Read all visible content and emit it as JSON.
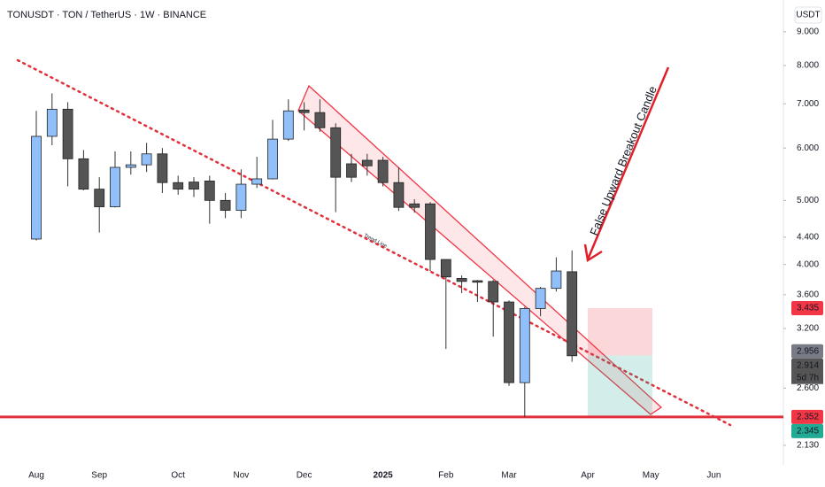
{
  "chart_data": {
    "type": "candlestick",
    "title": "TONUSDT · TON / TetherUS · 1W · BINANCE",
    "currency": "USDT",
    "log_scale": true,
    "up_color": "#90bff9",
    "down_color": "#555555",
    "open": [
      4.37,
      6.25,
      6.87,
      5.78,
      5.2,
      4.89,
      5.61,
      5.66,
      5.88,
      5.32,
      5.33,
      5.35,
      5.0,
      4.83,
      5.29,
      5.39,
      6.19,
      6.85,
      6.79,
      6.44,
      5.68,
      5.75,
      5.75,
      5.32,
      4.94,
      4.94,
      4.07,
      3.81,
      3.78,
      3.77,
      3.51,
      2.65,
      3.43,
      3.68,
      3.9
    ],
    "high": [
      6.83,
      7.26,
      7.04,
      5.96,
      5.42,
      5.93,
      5.93,
      6.11,
      6.0,
      5.45,
      5.42,
      5.45,
      5.13,
      5.57,
      5.82,
      6.62,
      7.11,
      7.04,
      7.11,
      6.54,
      5.88,
      5.88,
      5.82,
      5.61,
      5.02,
      4.97,
      4.07,
      3.85,
      3.79,
      3.79,
      3.53,
      3.45,
      3.7,
      4.1,
      4.2
    ],
    "low": [
      4.35,
      6.06,
      5.25,
      5.18,
      4.47,
      4.88,
      5.47,
      5.52,
      5.13,
      5.1,
      5.06,
      4.61,
      4.7,
      4.7,
      5.22,
      5.38,
      6.15,
      6.38,
      6.35,
      4.8,
      5.33,
      5.45,
      5.25,
      4.82,
      4.79,
      3.91,
      2.98,
      3.62,
      3.51,
      3.11,
      2.62,
      2.35,
      3.34,
      3.64,
      2.85
    ],
    "close": [
      6.25,
      6.87,
      5.78,
      5.2,
      4.89,
      5.61,
      5.66,
      5.88,
      5.32,
      5.2,
      5.2,
      5.0,
      4.83,
      5.29,
      5.39,
      6.19,
      6.83,
      6.79,
      6.44,
      5.42,
      5.42,
      5.64,
      5.32,
      4.88,
      4.88,
      4.07,
      3.83,
      3.77,
      3.76,
      3.51,
      2.65,
      3.43,
      3.68,
      3.91,
      2.91
    ],
    "ylim": [
      1.99,
      10.05
    ],
    "yticks": [
      {
        "value": 9,
        "label": "9.000"
      },
      {
        "value": 8,
        "label": "8.000"
      },
      {
        "value": 7,
        "label": "7.000"
      },
      {
        "value": 6,
        "label": "6.000"
      },
      {
        "value": 5,
        "label": "5.000"
      },
      {
        "value": 4.4,
        "label": "4.400"
      },
      {
        "value": 4,
        "label": "4.000"
      },
      {
        "value": 3.6,
        "label": "3.600"
      },
      {
        "value": 3.2,
        "label": "3.200"
      },
      {
        "value": 2.6,
        "label": "2.600"
      },
      {
        "value": 2.13,
        "label": "2.130"
      }
    ],
    "x_labels": [
      "Aug",
      "Sep",
      "Oct",
      "Nov",
      "Dec",
      "2025",
      "Feb",
      "Mar",
      "Apr",
      "May",
      "Jun"
    ],
    "price_labels": [
      {
        "value": 3.435,
        "color": "#f23645"
      },
      {
        "value": 2.956,
        "color": "#787b86"
      },
      {
        "value": 2.914,
        "color": "#555555"
      },
      {
        "value": 2.352,
        "color": "#f23645"
      },
      {
        "value": 2.345,
        "color": "#22ab94"
      }
    ],
    "countdown": "5d 7h",
    "annotations": [
      "False Upward Breakout Candle",
      "Trend Line"
    ]
  }
}
